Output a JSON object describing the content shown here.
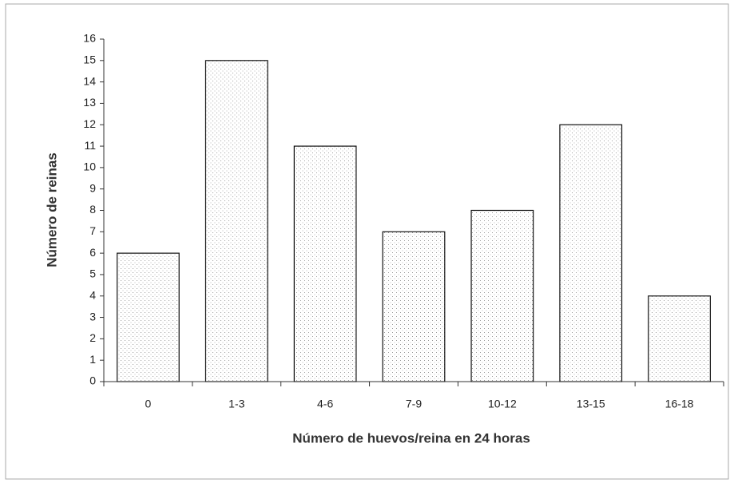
{
  "chart_data": {
    "type": "bar",
    "x_label": "Número de huevos/reina en 24 horas",
    "y_label": "Número de reinas",
    "categories": [
      "0",
      "1-3",
      "4-6",
      "7-9",
      "10-12",
      "13-15",
      "16-18"
    ],
    "values": [
      6,
      15,
      11,
      7,
      8,
      12,
      4
    ],
    "ylim": [
      0,
      16
    ],
    "yticks": [
      0,
      1,
      2,
      3,
      4,
      5,
      6,
      7,
      8,
      9,
      10,
      11,
      12,
      13,
      14,
      15,
      16
    ],
    "grid": false
  }
}
